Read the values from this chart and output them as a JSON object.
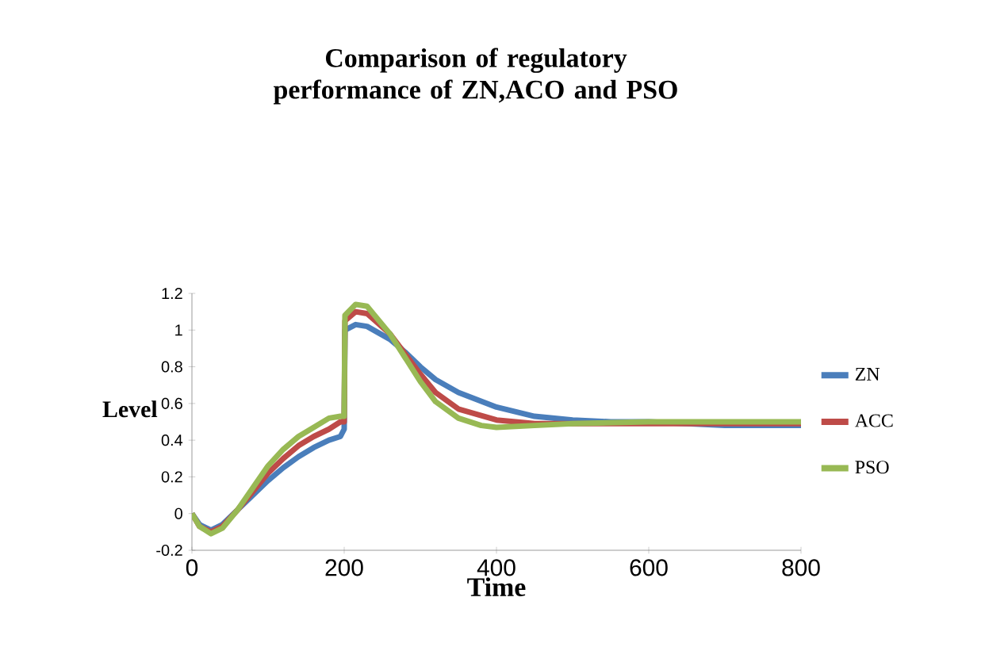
{
  "chart_data": {
    "type": "line",
    "title": "Comparison of regulatory performance of ZN,ACO and PSO",
    "xlabel": "Time",
    "ylabel": "Level",
    "xlim": [
      0,
      800
    ],
    "ylim": [
      -0.2,
      1.2
    ],
    "xticks": [
      0,
      200,
      400,
      600,
      800
    ],
    "yticks": [
      -0.2,
      0,
      0.2,
      0.4,
      0.6,
      0.8,
      1,
      1.2
    ],
    "legend": "right",
    "grid": false,
    "marker": "none",
    "line_style": "solid",
    "series": [
      {
        "name": "ZN",
        "color": "#4a7ebb",
        "x": [
          0,
          10,
          25,
          40,
          60,
          80,
          100,
          120,
          140,
          160,
          180,
          195,
          200,
          201,
          215,
          230,
          260,
          280,
          300,
          320,
          350,
          400,
          450,
          500,
          550,
          600,
          700,
          800
        ],
        "values": [
          0,
          -0.06,
          -0.09,
          -0.06,
          0.02,
          0.1,
          0.18,
          0.25,
          0.31,
          0.36,
          0.4,
          0.42,
          0.46,
          1.0,
          1.03,
          1.02,
          0.95,
          0.88,
          0.8,
          0.73,
          0.66,
          0.58,
          0.53,
          0.51,
          0.5,
          0.5,
          0.48,
          0.48
        ]
      },
      {
        "name": "ACC",
        "color": "#be4b48",
        "x": [
          0,
          10,
          25,
          40,
          60,
          80,
          100,
          120,
          140,
          160,
          180,
          195,
          200,
          201,
          215,
          230,
          260,
          280,
          300,
          320,
          350,
          400,
          450,
          500,
          600,
          800
        ],
        "values": [
          0,
          -0.07,
          -0.1,
          -0.07,
          0.02,
          0.12,
          0.22,
          0.3,
          0.37,
          0.42,
          0.46,
          0.5,
          0.5,
          1.05,
          1.1,
          1.09,
          0.98,
          0.87,
          0.76,
          0.66,
          0.57,
          0.51,
          0.49,
          0.49,
          0.49,
          0.49
        ]
      },
      {
        "name": "PSO",
        "color": "#98b954",
        "x": [
          0,
          10,
          25,
          40,
          60,
          80,
          100,
          120,
          140,
          160,
          180,
          195,
          200,
          201,
          215,
          230,
          260,
          280,
          300,
          320,
          350,
          380,
          400,
          450,
          500,
          600,
          800
        ],
        "values": [
          0,
          -0.07,
          -0.11,
          -0.08,
          0.02,
          0.14,
          0.26,
          0.35,
          0.42,
          0.47,
          0.52,
          0.53,
          0.53,
          1.08,
          1.14,
          1.13,
          0.98,
          0.85,
          0.72,
          0.61,
          0.52,
          0.48,
          0.47,
          0.48,
          0.49,
          0.5,
          0.5
        ]
      }
    ]
  }
}
